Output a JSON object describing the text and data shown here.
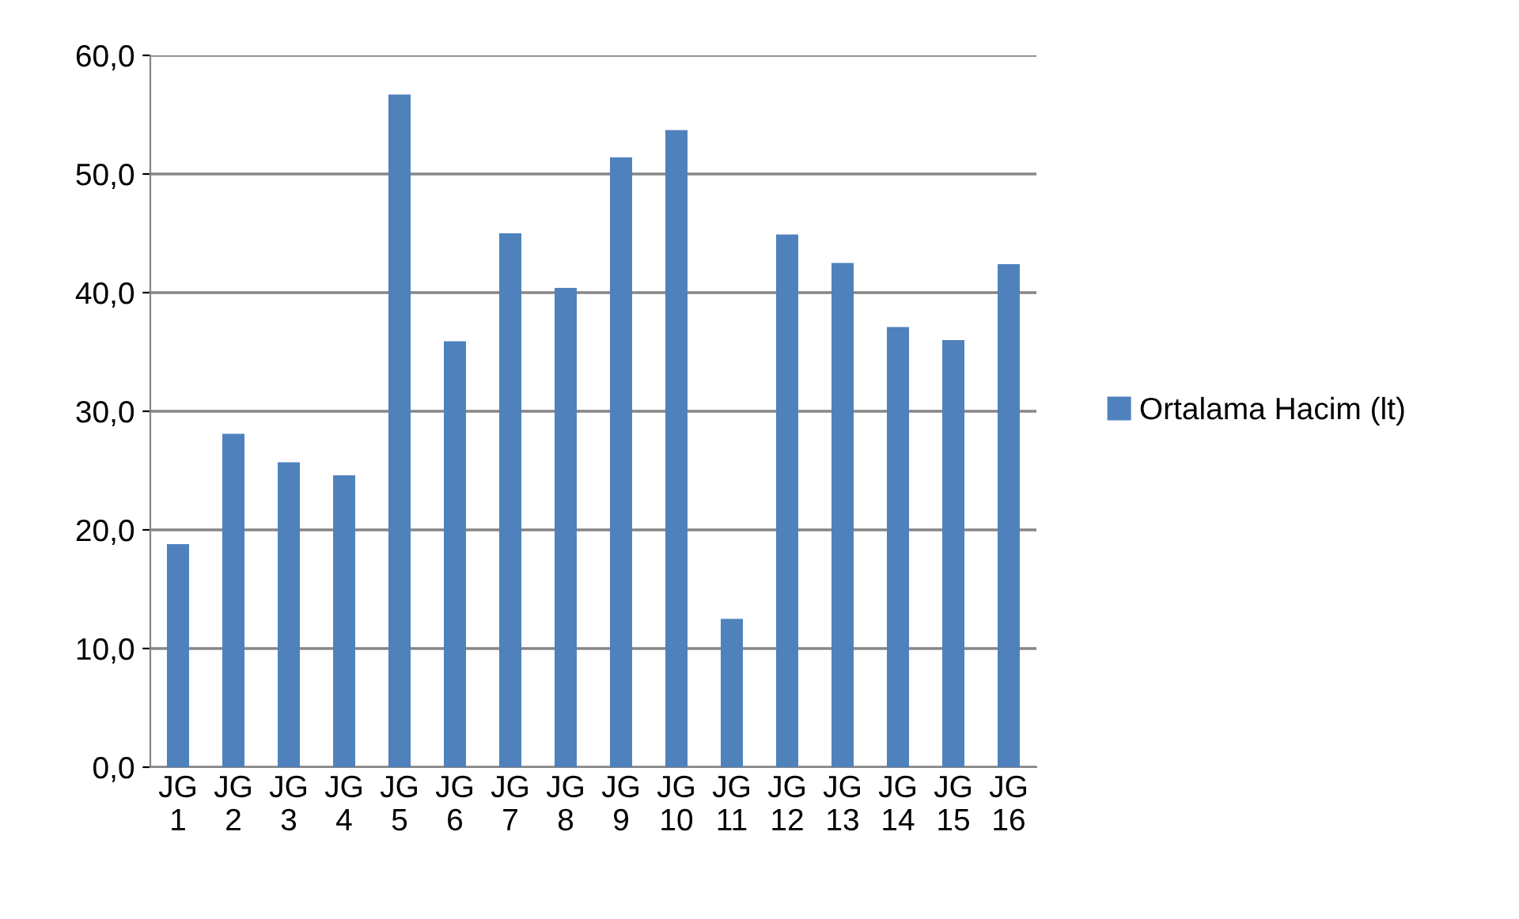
{
  "chart_data": {
    "type": "bar",
    "categories": [
      "JG 1",
      "JG 2",
      "JG 3",
      "JG 4",
      "JG 5",
      "JG 6",
      "JG 7",
      "JG 8",
      "JG 9",
      "JG 10",
      "JG 11",
      "JG 12",
      "JG 13",
      "JG 14",
      "JG 15",
      "JG 16"
    ],
    "series": [
      {
        "name": "Ortalama Hacim (lt)",
        "color": "#4f81bd",
        "values": [
          18.8,
          28.1,
          25.7,
          24.6,
          56.7,
          35.9,
          45.0,
          40.4,
          51.4,
          53.7,
          12.5,
          44.9,
          42.5,
          37.1,
          36.0,
          42.4
        ]
      }
    ],
    "ylim": [
      0,
      60
    ],
    "yticks": [
      {
        "value": 0,
        "label": "0,0"
      },
      {
        "value": 10,
        "label": "10,0"
      },
      {
        "value": 20,
        "label": "20,0"
      },
      {
        "value": 30,
        "label": "30,0"
      },
      {
        "value": 40,
        "label": "40,0"
      },
      {
        "value": 50,
        "label": "50,0"
      },
      {
        "value": 60,
        "label": "60,0"
      }
    ],
    "grid": "y",
    "legend": "right"
  }
}
